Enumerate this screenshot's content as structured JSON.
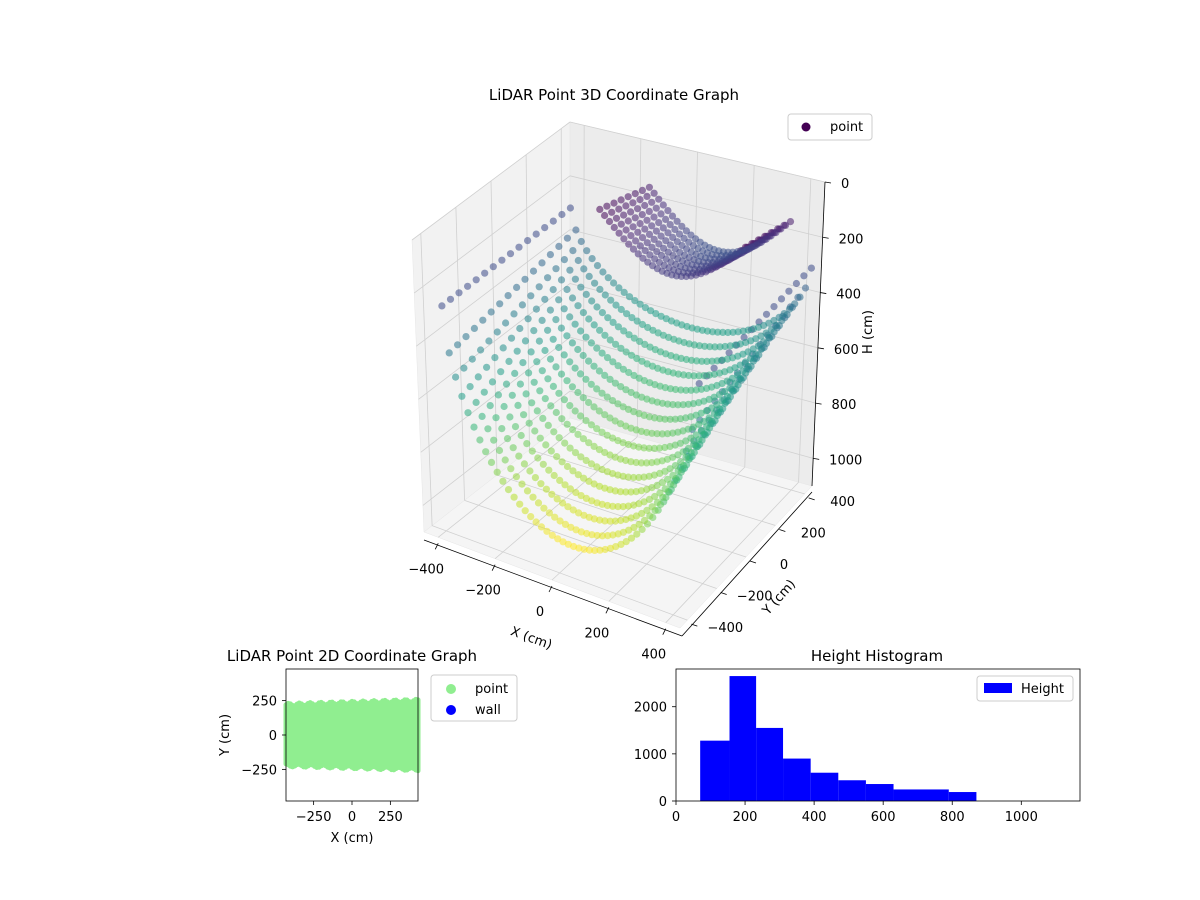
{
  "colors": {
    "point_2d": "#90ee90",
    "wall_2d": "#0000ff",
    "histogram": "#0000ff",
    "colormap_low": "#440154",
    "colormap_high": "#fde725",
    "pane": "#f2f2f2",
    "grid": "#d0d0d0"
  },
  "chart_data": [
    {
      "type": "scatter",
      "projection": "3d",
      "title": "LiDAR Point 3D Coordinate Graph",
      "xlabel": "X (cm)",
      "ylabel": "Y (cm)",
      "zlabel": "H (cm)",
      "xlim": [
        -450,
        450
      ],
      "ylim": [
        -450,
        450
      ],
      "zlim": [
        0,
        1100
      ],
      "z_inverted": true,
      "xticks": [
        "−400",
        "−200",
        "0",
        "200",
        "400"
      ],
      "yticks": [
        "−400",
        "−200",
        "0",
        "200",
        "400"
      ],
      "zticks": [
        "0",
        "200",
        "400",
        "600",
        "800",
        "1000"
      ],
      "colormap": "viridis",
      "legend": {
        "entries": [
          "point"
        ],
        "loc": "upper right"
      },
      "series": [
        {
          "name": "point",
          "description_values": "arcs of points sweeping across X from -430 to 430, with height rising toward the scan edges",
          "x_range": [
            -430,
            430
          ],
          "y_range": [
            -420,
            420
          ],
          "h_range": [
            80,
            1050
          ]
        }
      ],
      "grid": true
    },
    {
      "type": "scatter",
      "title": "LiDAR Point 2D Coordinate Graph",
      "xlabel": "X (cm)",
      "ylabel": "Y (cm)",
      "xlim": [
        -430,
        430
      ],
      "ylim": [
        -480,
        480
      ],
      "xticks": [
        "−250",
        "0",
        "250"
      ],
      "yticks": [
        "250",
        "0",
        "−250"
      ],
      "legend": {
        "entries": [
          "point",
          "wall"
        ],
        "loc": "outside right"
      },
      "series": [
        {
          "name": "point",
          "x_range": [
            -430,
            430
          ],
          "y_range": [
            -260,
            260
          ]
        },
        {
          "name": "wall",
          "x": [],
          "y": []
        }
      ],
      "grid": false
    },
    {
      "type": "bar",
      "subtype": "histogram",
      "title": "Height Histogram",
      "xlabel": "",
      "ylabel": "",
      "xlim": [
        0,
        1170
      ],
      "ylim": [
        0,
        2800
      ],
      "xticks": [
        "0",
        "200",
        "400",
        "600",
        "800",
        "1000"
      ],
      "yticks": [
        "0",
        "1000",
        "2000"
      ],
      "legend": {
        "entries": [
          "Height"
        ],
        "loc": "upper right"
      },
      "bins": [
        {
          "start": 70,
          "end": 155,
          "count": 1280
        },
        {
          "start": 155,
          "end": 232,
          "count": 2650
        },
        {
          "start": 232,
          "end": 310,
          "count": 1550
        },
        {
          "start": 310,
          "end": 390,
          "count": 900
        },
        {
          "start": 390,
          "end": 470,
          "count": 600
        },
        {
          "start": 470,
          "end": 550,
          "count": 440
        },
        {
          "start": 550,
          "end": 630,
          "count": 360
        },
        {
          "start": 630,
          "end": 790,
          "count": 245
        },
        {
          "start": 790,
          "end": 870,
          "count": 190
        }
      ]
    }
  ]
}
